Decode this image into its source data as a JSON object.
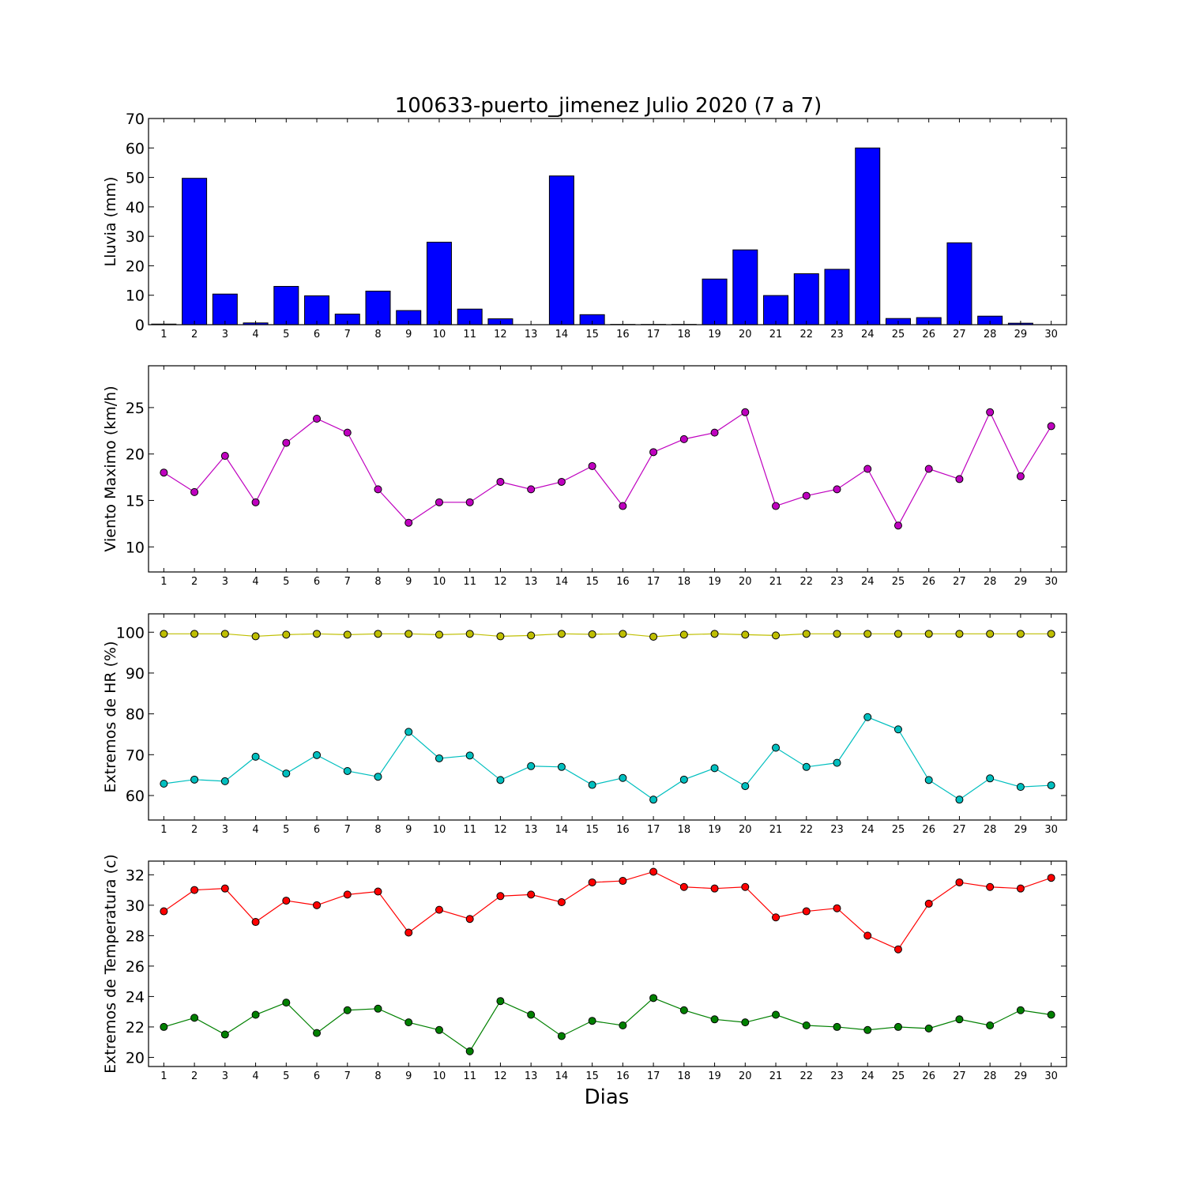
{
  "title": "100633-puerto_jimenez Julio 2020  (7 a 7)",
  "xlabel": "Dias",
  "chart_data": [
    {
      "type": "bar",
      "ylabel": "Lluvia (mm)",
      "ylim": [
        0,
        70
      ],
      "yticks": [
        0,
        10,
        20,
        30,
        40,
        50,
        60,
        70
      ],
      "x": [
        1,
        2,
        3,
        4,
        5,
        6,
        7,
        8,
        9,
        10,
        11,
        12,
        13,
        14,
        15,
        16,
        17,
        18,
        19,
        20,
        21,
        22,
        23,
        24,
        25,
        26,
        27,
        28,
        29,
        30
      ],
      "series": [
        {
          "color": "#0000ff",
          "values": [
            0.2,
            49.7,
            10.4,
            0.6,
            13.0,
            9.8,
            3.6,
            11.4,
            4.8,
            28.0,
            5.3,
            2.0,
            0.0,
            50.5,
            3.4,
            0.1,
            0.1,
            0.1,
            15.5,
            25.4,
            9.9,
            17.3,
            18.8,
            60.0,
            2.1,
            2.4,
            27.8,
            2.9,
            0.5,
            0.0
          ]
        }
      ]
    },
    {
      "type": "line",
      "ylabel": "Viento Maximo (km/h)",
      "ylim": [
        7.3,
        29.5
      ],
      "yticks": [
        10,
        15,
        20,
        25
      ],
      "x": [
        1,
        2,
        3,
        4,
        5,
        6,
        7,
        8,
        9,
        10,
        11,
        12,
        13,
        14,
        15,
        16,
        17,
        18,
        19,
        20,
        21,
        22,
        23,
        24,
        25,
        26,
        27,
        28,
        29,
        30
      ],
      "series": [
        {
          "color": "#bf00bf",
          "values": [
            18.0,
            15.9,
            19.8,
            14.8,
            21.2,
            23.8,
            22.3,
            16.2,
            12.6,
            14.8,
            14.8,
            17.0,
            16.2,
            17.0,
            18.7,
            14.4,
            20.2,
            21.6,
            22.3,
            24.5,
            14.4,
            15.5,
            16.2,
            18.4,
            12.3,
            18.4,
            17.3,
            24.5,
            17.6,
            23.0
          ]
        }
      ]
    },
    {
      "type": "line",
      "ylabel": "Extremos de HR (%)",
      "ylim": [
        54,
        104.5
      ],
      "yticks": [
        60,
        70,
        80,
        90,
        100
      ],
      "x": [
        1,
        2,
        3,
        4,
        5,
        6,
        7,
        8,
        9,
        10,
        11,
        12,
        13,
        14,
        15,
        16,
        17,
        18,
        19,
        20,
        21,
        22,
        23,
        24,
        25,
        26,
        27,
        28,
        29,
        30
      ],
      "series": [
        {
          "color": "#bfbf00",
          "values": [
            99.6,
            99.6,
            99.6,
            99.0,
            99.4,
            99.6,
            99.4,
            99.6,
            99.6,
            99.4,
            99.6,
            99.0,
            99.2,
            99.6,
            99.5,
            99.6,
            98.9,
            99.4,
            99.6,
            99.4,
            99.2,
            99.6,
            99.6,
            99.6,
            99.6,
            99.6,
            99.6,
            99.6,
            99.6,
            99.6
          ]
        },
        {
          "color": "#00bfbf",
          "values": [
            62.9,
            63.9,
            63.5,
            69.5,
            65.4,
            69.9,
            66.0,
            64.6,
            75.6,
            69.1,
            69.8,
            63.8,
            67.2,
            67.0,
            62.6,
            64.3,
            59.0,
            63.9,
            66.7,
            62.3,
            71.7,
            67.0,
            68.0,
            79.2,
            76.2,
            63.8,
            59.0,
            64.2,
            62.1,
            62.5
          ]
        }
      ]
    },
    {
      "type": "line",
      "ylabel": "Extremos de Temperatura (c)",
      "ylim": [
        19.4,
        32.9
      ],
      "yticks": [
        20,
        22,
        24,
        26,
        28,
        30,
        32
      ],
      "x": [
        1,
        2,
        3,
        4,
        5,
        6,
        7,
        8,
        9,
        10,
        11,
        12,
        13,
        14,
        15,
        16,
        17,
        18,
        19,
        20,
        21,
        22,
        23,
        24,
        25,
        26,
        27,
        28,
        29,
        30
      ],
      "series": [
        {
          "color": "#ff0000",
          "values": [
            29.6,
            31.0,
            31.1,
            28.9,
            30.3,
            30.0,
            30.7,
            30.9,
            28.2,
            29.7,
            29.1,
            30.6,
            30.7,
            30.2,
            31.5,
            31.6,
            32.2,
            31.2,
            31.1,
            31.2,
            29.2,
            29.6,
            29.8,
            28.0,
            27.1,
            30.1,
            31.5,
            31.2,
            31.1,
            31.8
          ]
        },
        {
          "color": "#008000",
          "values": [
            22.0,
            22.6,
            21.5,
            22.8,
            23.6,
            21.6,
            23.1,
            23.2,
            22.3,
            21.8,
            20.4,
            23.7,
            22.8,
            21.4,
            22.4,
            22.1,
            23.9,
            23.1,
            22.5,
            22.3,
            22.8,
            22.1,
            22.0,
            21.8,
            22.0,
            21.9,
            22.5,
            22.1,
            23.1,
            22.8
          ]
        }
      ]
    }
  ]
}
